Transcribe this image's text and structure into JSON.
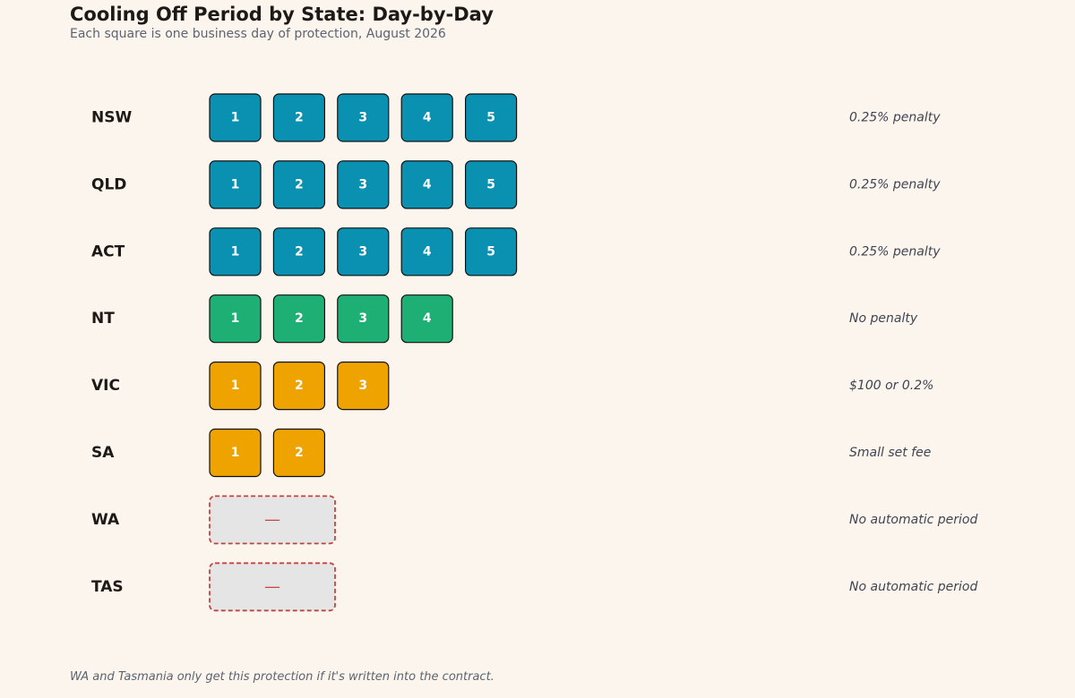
{
  "title": "Cooling Off Period by State: Day-by-Day",
  "subtitle": "Each square is one business day of protection, August 2026",
  "footnote": "WA and Tasmania only get this protection if it's written into the contract.",
  "colors": {
    "background": "#fcf5ee",
    "five_days": "#0a91b2",
    "four_days": "#1eaf75",
    "short": "#eea300",
    "none_fill": "#e5e5e5",
    "none_border": "#c0463f",
    "label": "#1c1917",
    "note": "#3f4451"
  },
  "chart_data": {
    "type": "table",
    "unit": "business days",
    "none_symbol": "—",
    "rows": [
      {
        "state": "NSW",
        "days": 5,
        "color": "five_days",
        "note": "0.25% penalty"
      },
      {
        "state": "QLD",
        "days": 5,
        "color": "five_days",
        "note": "0.25% penalty"
      },
      {
        "state": "ACT",
        "days": 5,
        "color": "five_days",
        "note": "0.25% penalty"
      },
      {
        "state": "NT",
        "days": 4,
        "color": "four_days",
        "note": "No penalty"
      },
      {
        "state": "VIC",
        "days": 3,
        "color": "short",
        "note": "$100 or 0.2%"
      },
      {
        "state": "SA",
        "days": 2,
        "color": "short",
        "note": "Small set fee"
      },
      {
        "state": "WA",
        "days": 0,
        "color": "none",
        "note": "No automatic period"
      },
      {
        "state": "TAS",
        "days": 0,
        "color": "none",
        "note": "No automatic period"
      }
    ]
  }
}
